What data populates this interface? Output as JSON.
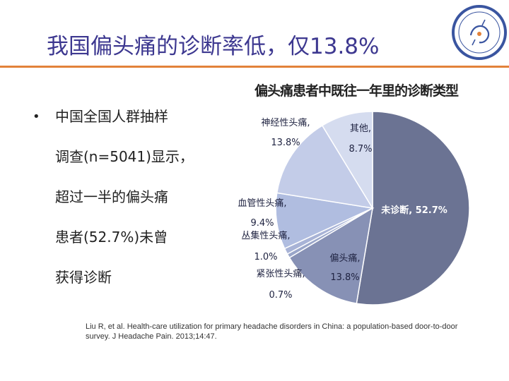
{
  "slide": {
    "title": "我国偏头痛的诊断率低，仅13.8%",
    "bullet_lines": [
      "中国全国人群抽样",
      "调查(n=5041)显示，",
      "超过一半的偏头痛",
      "患者(52.7%)未曾",
      "获得诊断"
    ],
    "reference": "Liu R, et al. Health-care utilization for primary headache disorders in China: a population-based door-to-door survey. J Headache Pain. 2013;14:47.",
    "colors": {
      "title": "#3d3890",
      "rule": "#e2823a"
    }
  },
  "chart_data": {
    "type": "pie",
    "title": "偏头痛患者中既往一年里的诊断类型",
    "slices": [
      {
        "label": "未诊断",
        "value": 52.7,
        "value_text": "52.7%",
        "color": "#6b7393"
      },
      {
        "label": "偏头痛",
        "value": 13.8,
        "value_text": "13.8%",
        "color": "#8791b5"
      },
      {
        "label": "紧张性头痛",
        "value": 0.7,
        "value_text": "0.7%",
        "color": "#9aa6c9"
      },
      {
        "label": "丛集性头痛",
        "value": 1.0,
        "value_text": "1.0%",
        "color": "#a8b3d6"
      },
      {
        "label": "血管性头痛",
        "value": 9.4,
        "value_text": "9.4%",
        "color": "#b0bde0"
      },
      {
        "label": "神经性头痛",
        "value": 13.8,
        "value_text": "13.8%",
        "color": "#c3cce8"
      },
      {
        "label": "其他",
        "value": 8.7,
        "value_text": "8.7%",
        "color": "#d5dcef"
      }
    ]
  }
}
